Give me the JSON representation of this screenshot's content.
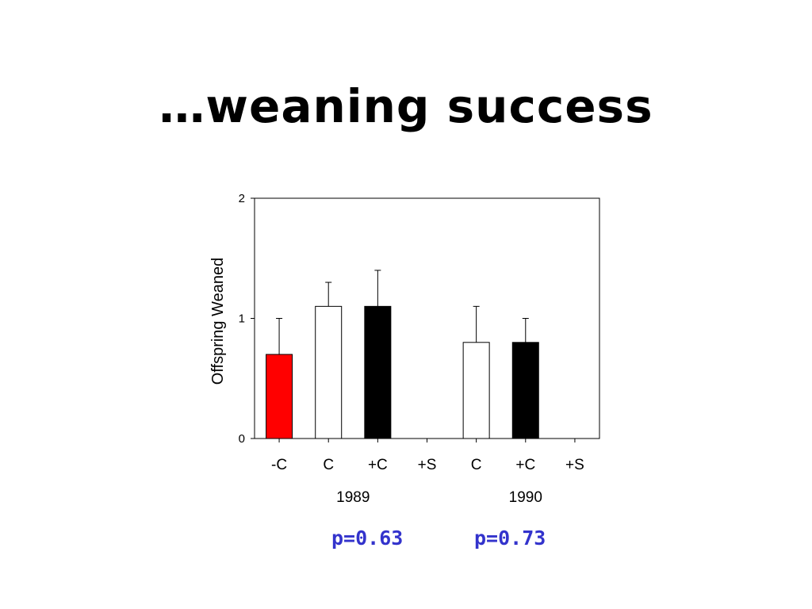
{
  "slide": {
    "title": "…weaning success"
  },
  "chart_data": {
    "type": "bar",
    "ylabel": "Offspring Weaned",
    "xlabel": "",
    "ylim": [
      0,
      2
    ],
    "yticks": [
      0,
      1,
      2
    ],
    "categories": [
      "-C",
      "C",
      "+C",
      "+S",
      "C",
      "+C",
      "+S"
    ],
    "groups": [
      {
        "label": "1989",
        "categories": [
          "-C",
          "C",
          "+C",
          "+S"
        ]
      },
      {
        "label": "1990",
        "categories": [
          "C",
          "+C",
          "+S"
        ]
      }
    ],
    "values": [
      0.7,
      1.1,
      1.1,
      0,
      0.8,
      0.8,
      0
    ],
    "error_upper": [
      0.3,
      0.2,
      0.3,
      0,
      0.3,
      0.2,
      0
    ],
    "bar_colors": [
      "#ff0000",
      "#ffffff",
      "#000000",
      "#ffffff",
      "#ffffff",
      "#000000",
      "#ffffff"
    ],
    "grid": false
  },
  "pvalues": [
    {
      "text": "p=0.63"
    },
    {
      "text": "p=0.73"
    }
  ],
  "colors": {
    "pvalue_text": "#3333cc",
    "bar_outline": "#000000"
  }
}
